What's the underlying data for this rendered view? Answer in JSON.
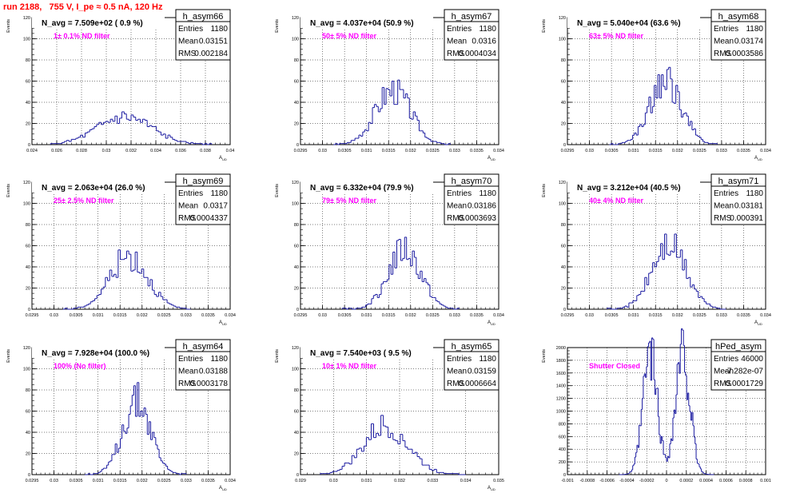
{
  "page": {
    "run_title": "run 2188,   755 V, I_pe ≈ 0.5 nA, 120 Hz"
  },
  "colors": {
    "histogram": "#1a1aa0",
    "frame": "#000000",
    "grid": "#000000",
    "filter_text": "#ff00ff",
    "run_title": "#ff0000",
    "stat_box_fill": "#ffffff"
  },
  "chart_data": [
    {
      "type": "histogram",
      "name": "h_asym66",
      "ylabel": "Events",
      "xlabel": "A_UD",
      "ylim": [
        0,
        120
      ],
      "yticks": [
        "0",
        "20",
        "40",
        "60",
        "80",
        "100",
        "120"
      ],
      "xlim": [
        0.024,
        0.04
      ],
      "xticks": [
        "0.024",
        "0.026",
        "0.028",
        "0.03",
        "0.032",
        "0.034",
        "0.036",
        "0.038",
        "0.04"
      ],
      "grid": true,
      "stats": {
        "title": "h_asym66",
        "entries_label": "Entries",
        "entries": "1180",
        "mean_label": "Mean",
        "mean": "0.03151",
        "rms_label": "RMS",
        "rms": "0.002184"
      },
      "n_avg": "N_avg = 7.509e+02 ( 0.9 %)",
      "filter": "1± 0.1% ND filter",
      "shape": {
        "mu": 0.0315,
        "sigma": 0.0022,
        "peak": 26,
        "bins": 70,
        "lo": 0.0255,
        "hi": 0.0385,
        "seed": 66
      }
    },
    {
      "type": "histogram",
      "name": "h_asym67",
      "ylabel": "Events",
      "xlabel": "A_UD",
      "ylim": [
        0,
        120
      ],
      "yticks": [
        "0",
        "20",
        "40",
        "60",
        "80",
        "100",
        "120"
      ],
      "xlim": [
        0.0295,
        0.034
      ],
      "xticks": [
        "0.0295",
        "0.03",
        "0.0305",
        "0.031",
        "0.0315",
        "0.032",
        "0.0325",
        "0.033",
        "0.0335",
        "0.034"
      ],
      "grid": true,
      "stats": {
        "title": "h_asym67",
        "entries_label": "Entries",
        "entries": "1180",
        "mean_label": "Mean",
        "mean": "0.0316",
        "rms_label": "RMS",
        "rms": "0.0004034"
      },
      "n_avg": "N_avg = 4.037e+04 (50.9 %)",
      "filter": "50± 5% ND filter",
      "shape": {
        "mu": 0.0316,
        "sigma": 0.0004,
        "peak": 52,
        "bins": 60,
        "lo": 0.03025,
        "hi": 0.0329,
        "seed": 67
      }
    },
    {
      "type": "histogram",
      "name": "h_asym68",
      "ylabel": "Events",
      "xlabel": "A_UD",
      "ylim": [
        0,
        120
      ],
      "yticks": [
        "0",
        "20",
        "40",
        "60",
        "80",
        "100",
        "120"
      ],
      "xlim": [
        0.0295,
        0.034
      ],
      "xticks": [
        "0.0295",
        "0.03",
        "0.0305",
        "0.031",
        "0.0315",
        "0.032",
        "0.0325",
        "0.033",
        "0.0335",
        "0.034"
      ],
      "grid": true,
      "stats": {
        "title": "h_asym68",
        "entries_label": "Entries",
        "entries": "1180",
        "mean_label": "Mean",
        "mean": "0.03174",
        "rms_label": "RMS",
        "rms": "0.0003586"
      },
      "n_avg": "N_avg = 5.040e+04 (63.6 %)",
      "filter": "63± 5% ND filter",
      "shape": {
        "mu": 0.03174,
        "sigma": 0.00036,
        "peak": 60,
        "bins": 60,
        "lo": 0.03045,
        "hi": 0.0329,
        "seed": 68
      }
    },
    {
      "type": "histogram",
      "name": "h_asym69",
      "ylabel": "Events",
      "xlabel": "A_UD",
      "ylim": [
        0,
        120
      ],
      "yticks": [
        "0",
        "20",
        "40",
        "60",
        "80",
        "100",
        "120"
      ],
      "xlim": [
        0.0295,
        0.034
      ],
      "xticks": [
        "0.0295",
        "0.03",
        "0.0305",
        "0.031",
        "0.0315",
        "0.032",
        "0.0325",
        "0.033",
        "0.0335",
        "0.034"
      ],
      "grid": true,
      "stats": {
        "title": "h_asym69",
        "entries_label": "Entries",
        "entries": "1180",
        "mean_label": "Mean",
        "mean": "0.0317",
        "rms_label": "RMS",
        "rms": "0.0004337"
      },
      "n_avg": "N_avg = 2.063e+04 (26.0 %)",
      "filter": "25± 2.5% ND filter",
      "shape": {
        "mu": 0.0317,
        "sigma": 0.00043,
        "peak": 50,
        "bins": 60,
        "lo": 0.0302,
        "hi": 0.0331,
        "seed": 69
      }
    },
    {
      "type": "histogram",
      "name": "h_asym70",
      "ylabel": "Events",
      "xlabel": "A_UD",
      "ylim": [
        0,
        120
      ],
      "yticks": [
        "0",
        "20",
        "40",
        "60",
        "80",
        "100",
        "120"
      ],
      "xlim": [
        0.0295,
        0.034
      ],
      "xticks": [
        "0.0295",
        "0.03",
        "0.0305",
        "0.031",
        "0.0315",
        "0.032",
        "0.0325",
        "0.033",
        "0.0335",
        "0.034"
      ],
      "grid": true,
      "stats": {
        "title": "h_asym70",
        "entries_label": "Entries",
        "entries": "1180",
        "mean_label": "Mean",
        "mean": "0.03186",
        "rms_label": "RMS",
        "rms": "0.0003693"
      },
      "n_avg": "N_avg = 6.332e+04 (79.9 %)",
      "filter": "79± 5% ND filter",
      "shape": {
        "mu": 0.03186,
        "sigma": 0.00037,
        "peak": 56,
        "bins": 60,
        "lo": 0.03045,
        "hi": 0.0331,
        "seed": 70
      }
    },
    {
      "type": "histogram",
      "name": "h_asym71",
      "ylabel": "Events",
      "xlabel": "A_UD",
      "ylim": [
        0,
        120
      ],
      "yticks": [
        "0",
        "20",
        "40",
        "60",
        "80",
        "100",
        "120"
      ],
      "xlim": [
        0.0295,
        0.034
      ],
      "xticks": [
        "0.0295",
        "0.03",
        "0.0305",
        "0.031",
        "0.0315",
        "0.032",
        "0.0325",
        "0.033",
        "0.0335",
        "0.034"
      ],
      "grid": true,
      "stats": {
        "title": "h_asym71",
        "entries_label": "Entries",
        "entries": "1180",
        "mean_label": "Mean",
        "mean": "0.03181",
        "rms_label": "RMS",
        "rms": "0.000391"
      },
      "n_avg": "N_avg = 3.212e+04 (40.5 %)",
      "filter": "40± 4% ND filter",
      "shape": {
        "mu": 0.03181,
        "sigma": 0.00039,
        "peak": 60,
        "bins": 60,
        "lo": 0.0304,
        "hi": 0.0331,
        "seed": 71
      }
    },
    {
      "type": "histogram",
      "name": "h_asym64",
      "ylabel": "Events",
      "xlabel": "A_UD",
      "ylim": [
        0,
        120
      ],
      "yticks": [
        "0",
        "20",
        "40",
        "60",
        "80",
        "100",
        "120"
      ],
      "xlim": [
        0.0295,
        0.034
      ],
      "xticks": [
        "0.0295",
        "0.03",
        "0.0305",
        "0.031",
        "0.0315",
        "0.032",
        "0.0325",
        "0.033",
        "0.0335",
        "0.034"
      ],
      "grid": true,
      "stats": {
        "title": "h_asym64",
        "entries_label": "Entries",
        "entries": "1180",
        "mean_label": "Mean",
        "mean": "0.03188",
        "rms_label": "RMS",
        "rms": "0.0003178"
      },
      "n_avg": "N_avg = 7.928e+04 (100.0 %)",
      "filter": "100% (No filter)",
      "shape": {
        "mu": 0.03188,
        "sigma": 0.00032,
        "peak": 70,
        "bins": 60,
        "lo": 0.0307,
        "hi": 0.033,
        "seed": 64
      }
    },
    {
      "type": "histogram",
      "name": "h_asym65",
      "ylabel": "Events",
      "xlabel": "A_UD",
      "ylim": [
        0,
        120
      ],
      "yticks": [
        "0",
        "20",
        "40",
        "60",
        "80",
        "100",
        "120"
      ],
      "xlim": [
        0.029,
        0.035
      ],
      "xticks": [
        "0.029",
        "0.03",
        "0.031",
        "0.032",
        "0.033",
        "0.034",
        "0.035"
      ],
      "grid": true,
      "stats": {
        "title": "h_asym65",
        "entries_label": "Entries",
        "entries": "1180",
        "mean_label": "Mean",
        "mean": "0.03159",
        "rms_label": "RMS",
        "rms": "0.0006664"
      },
      "n_avg": "N_avg = 7.540e+03 ( 9.5 %)",
      "filter": "10± 1% ND filter",
      "shape": {
        "mu": 0.03159,
        "sigma": 0.00067,
        "peak": 46,
        "bins": 60,
        "lo": 0.0296,
        "hi": 0.034,
        "seed": 65
      }
    },
    {
      "type": "histogram",
      "name": "hPed_asym",
      "ylabel": "Events",
      "xlabel": "",
      "ylim": [
        0,
        2000
      ],
      "yticks": [
        "0",
        "200",
        "400",
        "600",
        "800",
        "1000",
        "1200",
        "1400",
        "1600",
        "1800",
        "2000"
      ],
      "xlim": [
        -0.001,
        0.001
      ],
      "xticks": [
        "-0.001",
        "-0.0008",
        "-0.0006",
        "-0.0004",
        "-0.0002",
        "0",
        "0.0002",
        "0.0004",
        "0.0006",
        "0.0008",
        "0.001"
      ],
      "grid": true,
      "stats": {
        "title": "hPed_asym",
        "entries_label": "Entries",
        "entries": "46000",
        "mean_label": "Mean",
        "mean": "-7.282e-07",
        "rms_label": "RMS",
        "rms": "0.0001729"
      },
      "n_avg": "",
      "filter": "Shutter Closed",
      "shape": {
        "bimodal": true,
        "mu1": -0.000165,
        "mu2": 0.000165,
        "sigma": 7.2e-05,
        "peak": 1900,
        "bins": 90,
        "lo": -0.00048,
        "hi": 0.00048,
        "seed": 99
      }
    }
  ]
}
